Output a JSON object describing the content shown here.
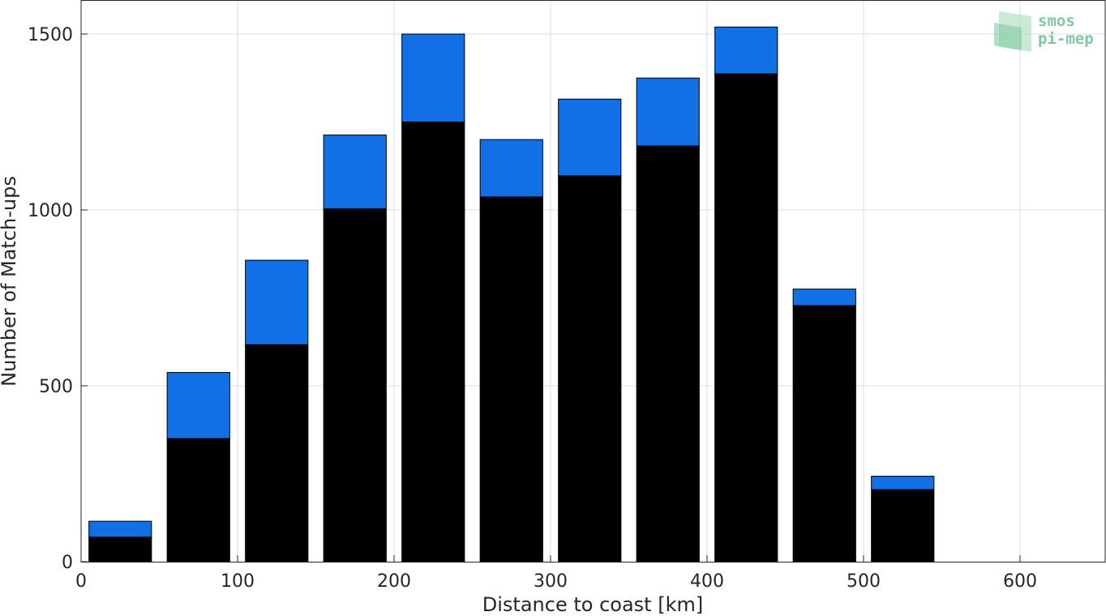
{
  "chart_data": {
    "type": "bar",
    "stacked": true,
    "xlabel": "Distance to coast [km]",
    "ylabel": "Number of Match-ups",
    "xlim": [
      0,
      655
    ],
    "ylim": [
      0,
      1500
    ],
    "xticks": [
      0,
      100,
      200,
      300,
      400,
      500,
      600
    ],
    "yticks": [
      0,
      500,
      1000,
      1500
    ],
    "grid": true,
    "bar_centers": [
      25,
      75,
      125,
      175,
      225,
      275,
      325,
      375,
      425,
      475,
      525
    ],
    "bar_width_km": 40,
    "series": [
      {
        "color": "#000000",
        "values": [
          70,
          350,
          617,
          1003,
          1250,
          1037,
          1097,
          1182,
          1387,
          728,
          205
        ]
      },
      {
        "color": "#1170e6",
        "values": [
          45,
          188,
          240,
          210,
          250,
          163,
          218,
          193,
          133,
          47,
          38
        ]
      }
    ],
    "totals": [
      115,
      538,
      857,
      1213,
      1500,
      1200,
      1315,
      1375,
      1520,
      775,
      243
    ]
  },
  "logo": {
    "line1": "smos",
    "line2": "pi-mep",
    "color": "#7fc9a0"
  }
}
